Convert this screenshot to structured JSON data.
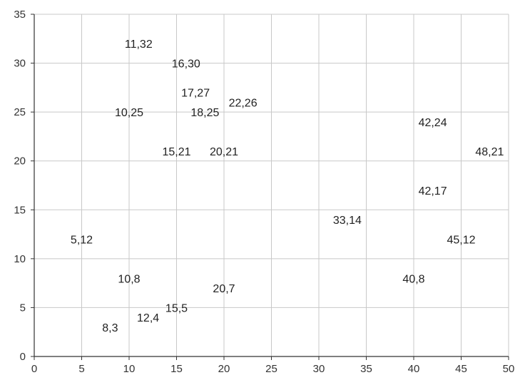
{
  "chart_data": {
    "type": "scatter",
    "title": "",
    "xlabel": "",
    "ylabel": "",
    "xlim": [
      0,
      50
    ],
    "ylim": [
      0,
      35
    ],
    "x_ticks": [
      0,
      5,
      10,
      15,
      20,
      25,
      30,
      35,
      40,
      45,
      50
    ],
    "y_ticks": [
      0,
      5,
      10,
      15,
      20,
      25,
      30,
      35
    ],
    "grid": true,
    "marker": "none (points shown as coordinate text labels)",
    "colors": {
      "grid": "#c8c8c8",
      "axis": "#333333",
      "label": "#222222"
    },
    "points": [
      {
        "x": 11,
        "y": 32,
        "label": "11,32"
      },
      {
        "x": 16,
        "y": 30,
        "label": "16,30"
      },
      {
        "x": 17,
        "y": 27,
        "label": "17,27"
      },
      {
        "x": 22,
        "y": 26,
        "label": "22,26"
      },
      {
        "x": 10,
        "y": 25,
        "label": "10,25"
      },
      {
        "x": 18,
        "y": 25,
        "label": "18,25"
      },
      {
        "x": 42,
        "y": 24,
        "label": "42,24"
      },
      {
        "x": 15,
        "y": 21,
        "label": "15,21"
      },
      {
        "x": 20,
        "y": 21,
        "label": "20,21"
      },
      {
        "x": 48,
        "y": 21,
        "label": "48,21"
      },
      {
        "x": 42,
        "y": 17,
        "label": "42,17"
      },
      {
        "x": 33,
        "y": 14,
        "label": "33,14"
      },
      {
        "x": 5,
        "y": 12,
        "label": "5,12"
      },
      {
        "x": 45,
        "y": 12,
        "label": "45,12"
      },
      {
        "x": 10,
        "y": 8,
        "label": "10,8"
      },
      {
        "x": 40,
        "y": 8,
        "label": "40,8"
      },
      {
        "x": 20,
        "y": 7,
        "label": "20,7"
      },
      {
        "x": 15,
        "y": 5,
        "label": "15,5"
      },
      {
        "x": 12,
        "y": 4,
        "label": "12,4"
      },
      {
        "x": 8,
        "y": 3,
        "label": "8,3"
      }
    ]
  }
}
